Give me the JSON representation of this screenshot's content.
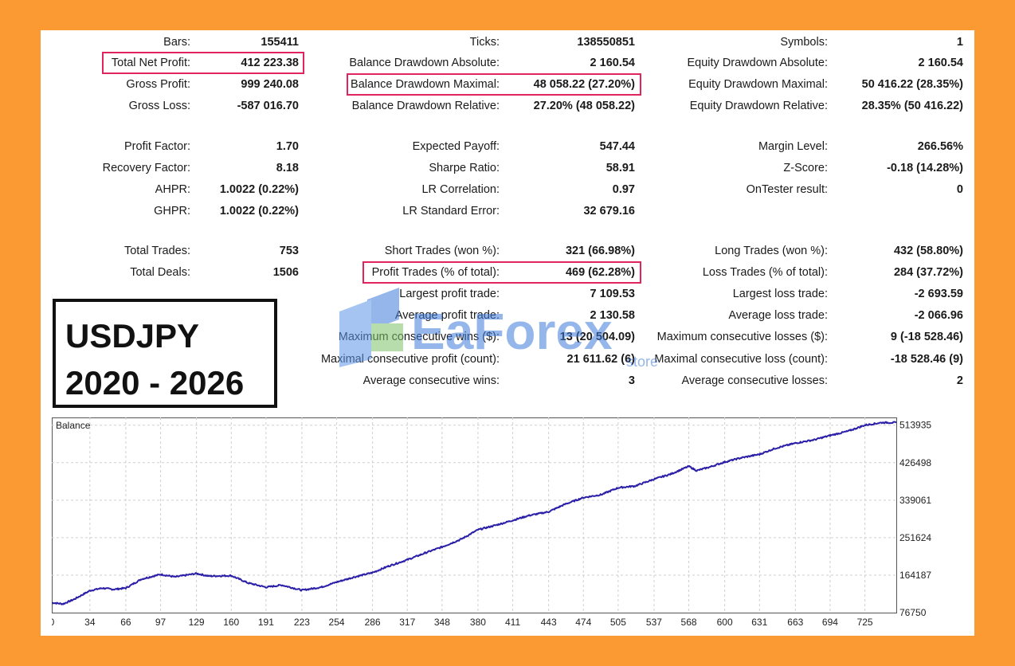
{
  "overlay": {
    "symbol": "USDJPY",
    "period": "2020 - 2026",
    "watermark_text": "EaForex",
    "watermark_sub": "store"
  },
  "stats": {
    "col1": [
      {
        "label": "Bars:",
        "value": "155411"
      },
      {
        "label": "Total Net Profit:",
        "value": "412 223.38"
      },
      {
        "label": "Gross Profit:",
        "value": "999 240.08"
      },
      {
        "label": "Gross Loss:",
        "value": "-587 016.70"
      },
      {
        "label": "Profit Factor:",
        "value": "1.70"
      },
      {
        "label": "Recovery Factor:",
        "value": "8.18"
      },
      {
        "label": "AHPR:",
        "value": "1.0022 (0.22%)"
      },
      {
        "label": "GHPR:",
        "value": "1.0022 (0.22%)"
      },
      {
        "label": "Total Trades:",
        "value": "753"
      },
      {
        "label": "Total Deals:",
        "value": "1506"
      }
    ],
    "col2": [
      {
        "label": "Ticks:",
        "value": "138550851"
      },
      {
        "label": "Balance Drawdown Absolute:",
        "value": "2 160.54"
      },
      {
        "label": "Balance Drawdown Maximal:",
        "value": "48 058.22 (27.20%)"
      },
      {
        "label": "Balance Drawdown Relative:",
        "value": "27.20% (48 058.22)"
      },
      {
        "label": "Expected Payoff:",
        "value": "547.44"
      },
      {
        "label": "Sharpe Ratio:",
        "value": "58.91"
      },
      {
        "label": "LR Correlation:",
        "value": "0.97"
      },
      {
        "label": "LR Standard Error:",
        "value": "32 679.16"
      },
      {
        "label": "Short Trades (won %):",
        "value": "321 (66.98%)"
      },
      {
        "label": "Profit Trades (% of total):",
        "value": "469 (62.28%)"
      },
      {
        "label": "Largest profit trade:",
        "value": "7 109.53"
      },
      {
        "label": "Average profit trade:",
        "value": "2 130.58"
      },
      {
        "label": "Maximum consecutive wins ($):",
        "value": "13 (20 504.09)"
      },
      {
        "label": "Maximal consecutive profit (count):",
        "value": "21 611.62 (6)"
      },
      {
        "label": "Average consecutive wins:",
        "value": "3"
      }
    ],
    "col3": [
      {
        "label": "Symbols:",
        "value": "1"
      },
      {
        "label": "Equity Drawdown Absolute:",
        "value": "2 160.54"
      },
      {
        "label": "Equity Drawdown Maximal:",
        "value": "50 416.22 (28.35%)"
      },
      {
        "label": "Equity Drawdown Relative:",
        "value": "28.35% (50 416.22)"
      },
      {
        "label": "Margin Level:",
        "value": "266.56%"
      },
      {
        "label": "Z-Score:",
        "value": "-0.18 (14.28%)"
      },
      {
        "label": "OnTester result:",
        "value": "0"
      },
      {
        "label": "Long Trades (won %):",
        "value": "432 (58.80%)"
      },
      {
        "label": "Loss Trades (% of total):",
        "value": "284 (37.72%)"
      },
      {
        "label": "Largest loss trade:",
        "value": "-2 693.59"
      },
      {
        "label": "Average loss trade:",
        "value": "-2 066.96"
      },
      {
        "label": "Maximum consecutive losses ($):",
        "value": "9 (-18 528.46)"
      },
      {
        "label": "Maximal consecutive loss (count):",
        "value": "-18 528.46 (9)"
      },
      {
        "label": "Average consecutive losses:",
        "value": "2"
      }
    ]
  },
  "colors": {
    "background": "#fb9a32",
    "highlight": "#e0245e",
    "balance_line": "#2b1fa8"
  },
  "chart_data": {
    "type": "line",
    "title": "Balance",
    "x_ticks": [
      0,
      34,
      66,
      97,
      129,
      160,
      191,
      223,
      254,
      286,
      317,
      348,
      380,
      411,
      443,
      474,
      505,
      537,
      568,
      600,
      631,
      663,
      694,
      725
    ],
    "y_ticks": [
      76750,
      164187,
      251624,
      339061,
      426498,
      513935
    ],
    "xlim": [
      0,
      753
    ],
    "ylim": [
      76750,
      532000
    ],
    "grid": true,
    "series": [
      {
        "x": [
          0,
          10,
          20,
          34,
          45,
          55,
          66,
          80,
          97,
          110,
          129,
          140,
          160,
          175,
          191,
          205,
          223,
          240,
          254,
          270,
          286,
          300,
          317,
          333,
          348,
          365,
          380,
          395,
          411,
          425,
          443,
          458,
          474,
          490,
          505,
          520,
          537,
          552,
          568,
          575,
          585,
          600,
          615,
          631,
          645,
          663,
          680,
          694,
          710,
          725,
          740,
          753
        ],
        "y": [
          100000,
          97000,
          108000,
          128000,
          134000,
          131000,
          134000,
          155000,
          166000,
          160000,
          168000,
          162000,
          163000,
          146000,
          136000,
          141000,
          129000,
          136000,
          148000,
          160000,
          170000,
          185000,
          200000,
          216000,
          230000,
          248000,
          270000,
          280000,
          292000,
          303000,
          312000,
          330000,
          345000,
          352000,
          368000,
          372000,
          388000,
          400000,
          418000,
          408000,
          415000,
          428000,
          438000,
          446000,
          460000,
          472000,
          480000,
          490000,
          500000,
          514000,
          520000,
          520000
        ]
      }
    ]
  }
}
